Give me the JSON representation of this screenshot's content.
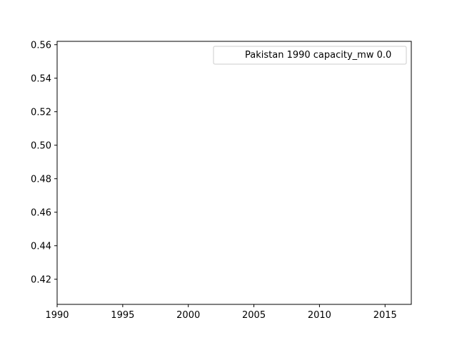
{
  "chart_data": {
    "type": "line",
    "title": "",
    "xlabel": "",
    "ylabel": "",
    "xlim": [
      1990,
      2017
    ],
    "ylim": [
      0.405,
      0.562
    ],
    "xticks": [
      1990,
      1995,
      2000,
      2005,
      2010,
      2015
    ],
    "xtick_labels": [
      "1990",
      "1995",
      "2000",
      "2005",
      "2010",
      "2015"
    ],
    "yticks": [
      0.42,
      0.44,
      0.46,
      0.48,
      0.5,
      0.52,
      0.54,
      0.56
    ],
    "ytick_labels": [
      "0.42",
      "0.44",
      "0.46",
      "0.48",
      "0.50",
      "0.52",
      "0.54",
      "0.56"
    ],
    "grid": false,
    "legend_position": "top-right",
    "series": [
      {
        "name": "Pakistan 1990 capacity_mw 0.0",
        "x": [],
        "y": [],
        "color": "#ffffff"
      }
    ]
  }
}
